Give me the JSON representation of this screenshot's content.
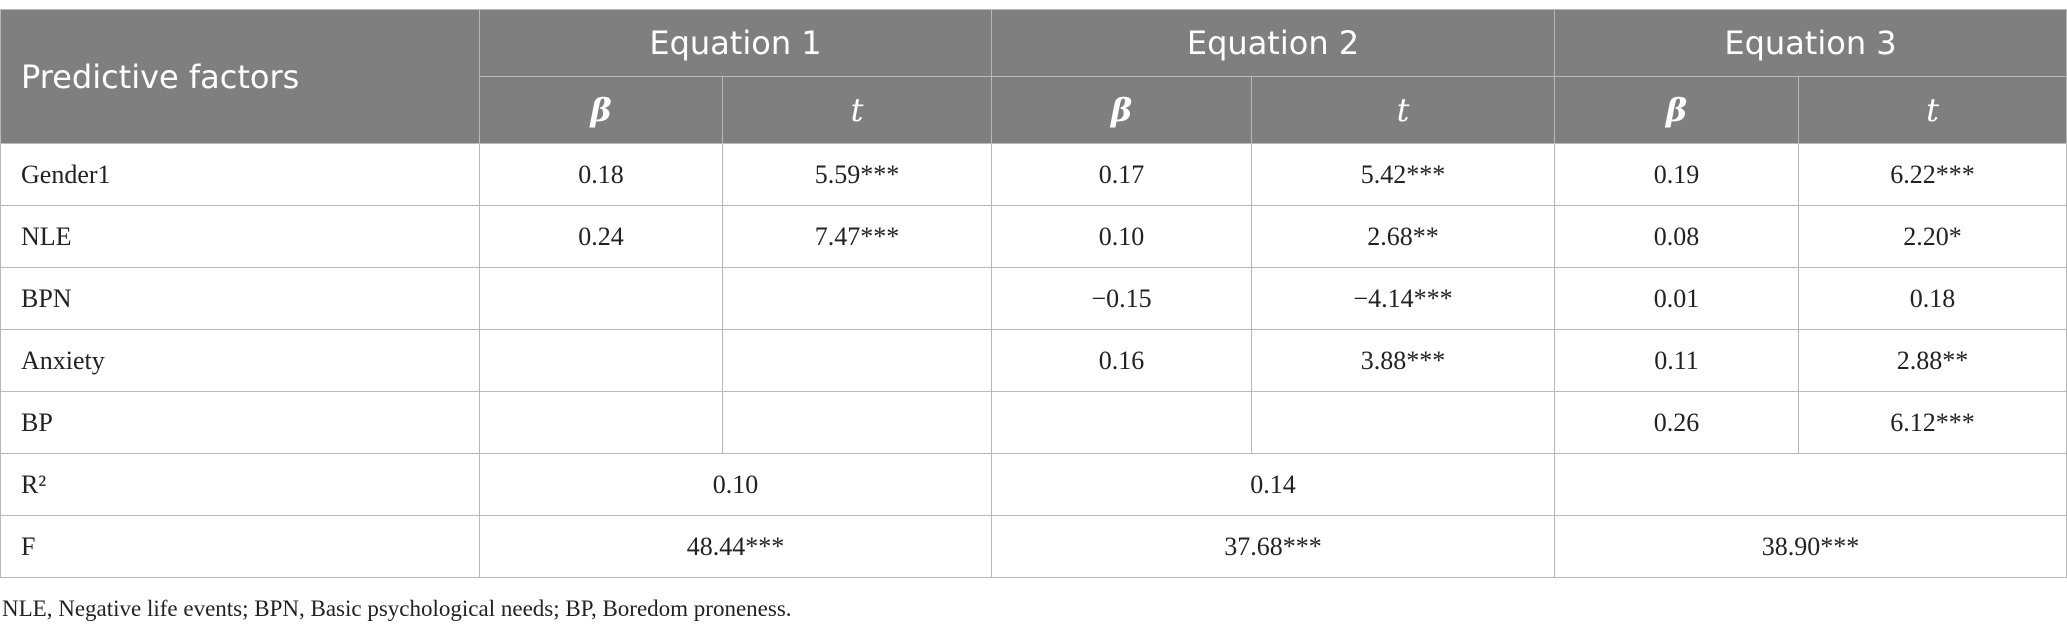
{
  "table": {
    "header": {
      "first": "Predictive factors",
      "groups": [
        "Equation 1",
        "Equation 2",
        "Equation 3"
      ],
      "sub": [
        "β",
        "t"
      ]
    },
    "rows": [
      {
        "label": "Gender1",
        "cells": [
          "0.18",
          "5.59***",
          "0.17",
          "5.42***",
          "0.19",
          "6.22***"
        ]
      },
      {
        "label": "NLE",
        "cells": [
          "0.24",
          "7.47***",
          "0.10",
          "2.68**",
          "0.08",
          "2.20*"
        ]
      },
      {
        "label": "BPN",
        "cells": [
          null,
          null,
          "−0.15",
          "−4.14***",
          "0.01",
          "0.18"
        ]
      },
      {
        "label": "Anxiety",
        "cells": [
          null,
          null,
          "0.16",
          "3.88***",
          "0.11",
          "2.88**"
        ]
      },
      {
        "label": "BP",
        "cells": [
          null,
          null,
          null,
          null,
          "0.26",
          "6.12***"
        ]
      }
    ],
    "summary": [
      {
        "label": "R²",
        "cells": [
          "0.10",
          "0.14",
          null
        ]
      },
      {
        "label": "F",
        "cells": [
          "48.44***",
          "37.68***",
          "38.90***"
        ]
      }
    ]
  },
  "footnote": "NLE, Negative life events; BPN, Basic psychological needs; BP, Boredom proneness."
}
